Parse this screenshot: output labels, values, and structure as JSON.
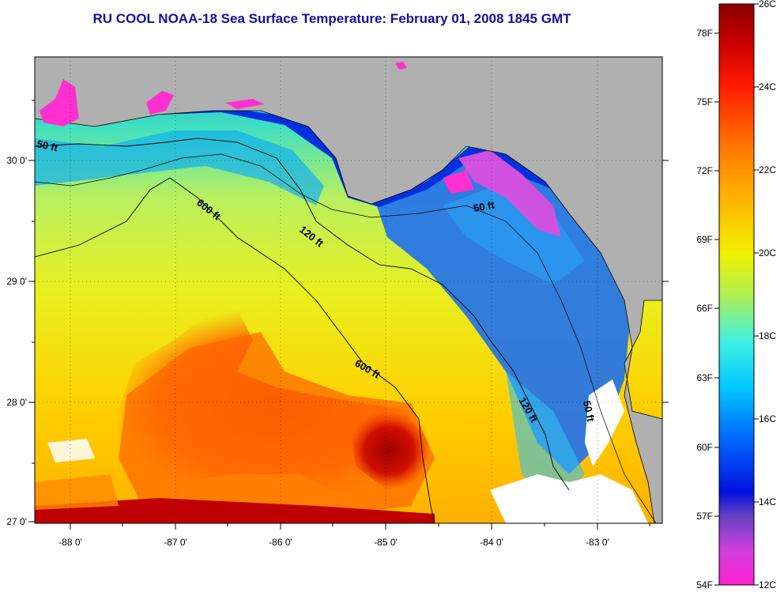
{
  "title": "RU COOL  NOAA-18  Sea Surface Temperature:  February 01, 2008 1845 GMT",
  "map": {
    "lon_ticks": [
      "-88 0'",
      "-87 0'",
      "-86 0'",
      "-85 0'",
      "-84 0'",
      "-83 0'"
    ],
    "lat_ticks": [
      "30 0'",
      "29 0'",
      "28 0'",
      "27 0'"
    ],
    "contour_labels": [
      "50 ft",
      "600 ft",
      "120 ft",
      "50 ft",
      "600 ft",
      "120 ft",
      "50 ft"
    ]
  },
  "colorbar": {
    "fahrenheit_labels": [
      "78F",
      "75F",
      "72F",
      "69F",
      "66F",
      "63F",
      "60F",
      "57F",
      "54F"
    ],
    "celsius_labels": [
      "26C",
      "24C",
      "22C",
      "20C",
      "18C",
      "16C",
      "14C",
      "12C"
    ]
  }
}
